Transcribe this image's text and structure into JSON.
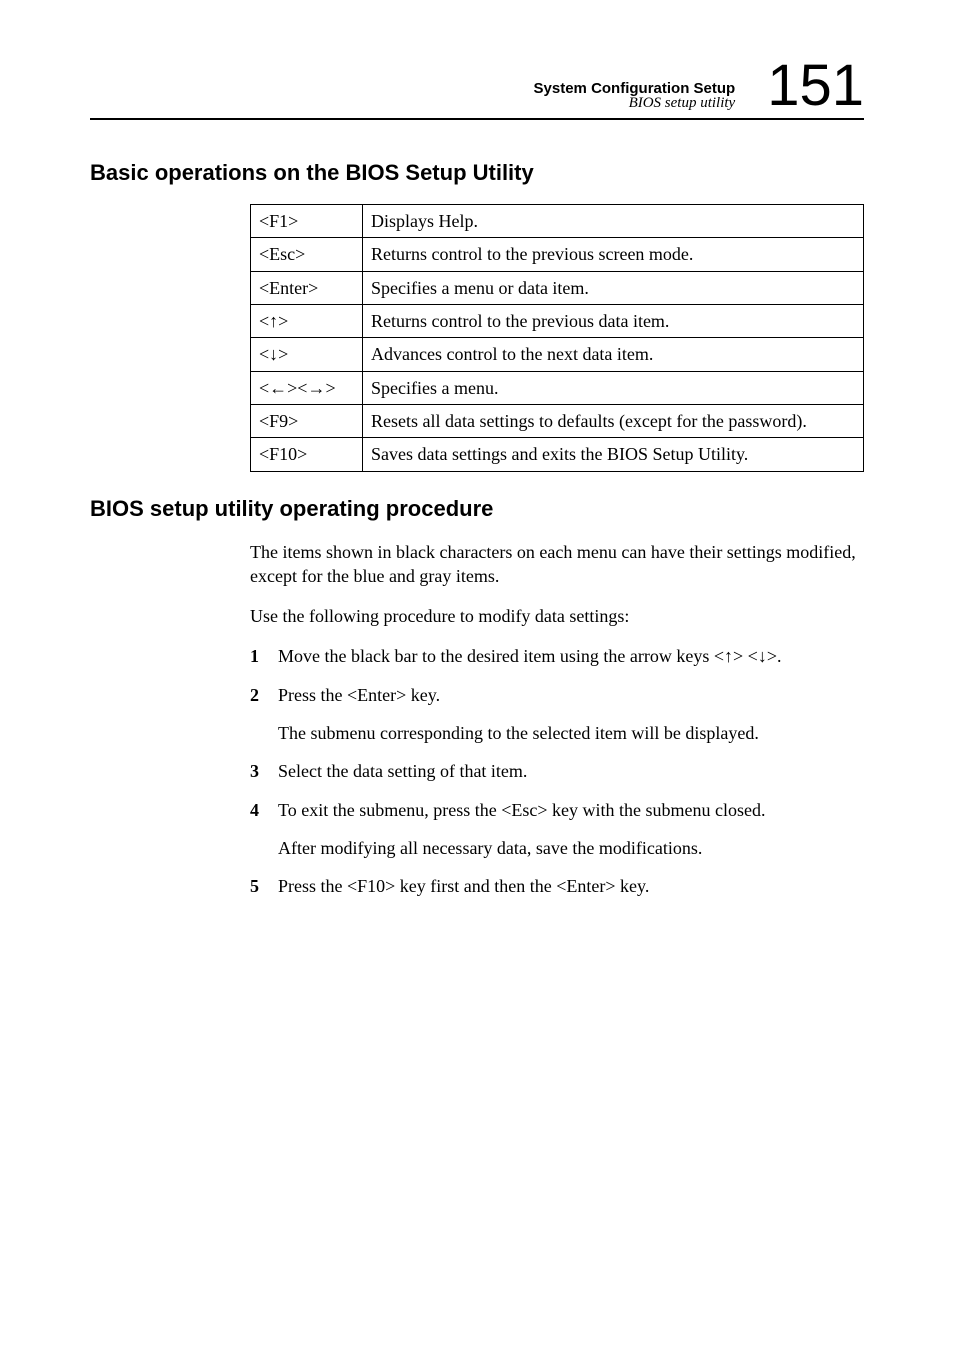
{
  "header": {
    "title": "System Configuration Setup",
    "subtitle": "BIOS setup utility",
    "page_number": "151"
  },
  "section1": {
    "heading": "Basic operations on the BIOS Setup Utility",
    "table": {
      "rows": [
        {
          "key": "<F1>",
          "desc": "Displays Help."
        },
        {
          "key": "<Esc>",
          "desc": "Returns control to the previous screen mode."
        },
        {
          "key": "<Enter>",
          "desc": "Specifies a menu or data item."
        },
        {
          "key": "<↑>",
          "desc": "Returns control to the previous data item."
        },
        {
          "key": "<↓>",
          "desc": "Advances control to the next data item."
        },
        {
          "key": "<←><→>",
          "desc": "Specifies a menu."
        },
        {
          "key": "<F9>",
          "desc": "Resets all data settings to defaults (except for the password)."
        },
        {
          "key": "<F10>",
          "desc": "Saves data settings and exits the BIOS Setup Utility."
        }
      ]
    }
  },
  "section2": {
    "heading": "BIOS setup utility operating procedure",
    "para1": "The items shown in black characters on each menu can have their settings modified, except for the blue and gray items.",
    "para2": "Use the following procedure to modify data settings:",
    "steps": [
      {
        "text": "Move the black bar to the desired item using the arrow keys <↑> <↓>."
      },
      {
        "text": "Press the <Enter> key.",
        "sub": "The submenu corresponding to the selected item will be displayed."
      },
      {
        "text": "Select the data setting of that item."
      },
      {
        "text": "To exit the submenu, press the <Esc> key with the submenu closed.",
        "sub": "After modifying all necessary data, save the modifications."
      },
      {
        "text": "Press the <F10> key first and then the <Enter> key."
      }
    ]
  }
}
